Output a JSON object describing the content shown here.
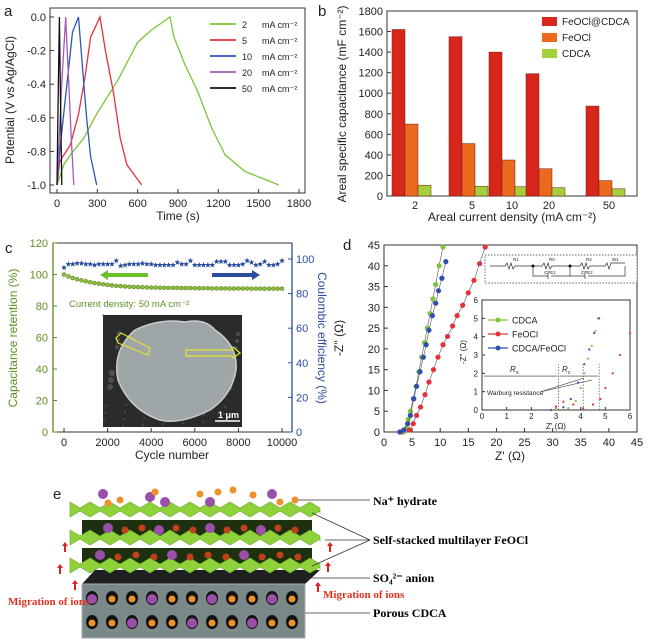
{
  "panel_labels": {
    "a": "a",
    "b": "b",
    "c": "c",
    "d": "d",
    "e": "e"
  },
  "chart_data": [
    {
      "panel": "a",
      "type": "line",
      "xlabel": "Time (s)",
      "ylabel": "Potential (V vs Ag/AgCl)",
      "xlim": [
        0,
        1800
      ],
      "ylim": [
        -1.0,
        0.0
      ],
      "xticks": [
        "0",
        "300",
        "600",
        "900",
        "1200",
        "1500",
        "1800"
      ],
      "yticks": [
        "-1.0",
        "-0.8",
        "-0.6",
        "-0.4",
        "-0.2",
        "0.0"
      ],
      "legend_position": "top-right",
      "series": [
        {
          "name": "2",
          "unit": "mA cm⁻²",
          "color": "#7cc43a",
          "points": [
            [
              0,
              -1
            ],
            [
              50,
              -0.88
            ],
            [
              100,
              -0.82
            ],
            [
              200,
              -0.72
            ],
            [
              300,
              -0.57
            ],
            [
              450,
              -0.38
            ],
            [
              600,
              -0.15
            ],
            [
              700,
              -0.08
            ],
            [
              840,
              0
            ],
            [
              870,
              -0.12
            ],
            [
              950,
              -0.28
            ],
            [
              1050,
              -0.45
            ],
            [
              1150,
              -0.66
            ],
            [
              1250,
              -0.82
            ],
            [
              1400,
              -0.92
            ],
            [
              1650,
              -1.0
            ]
          ]
        },
        {
          "name": "5",
          "unit": "mA cm⁻²",
          "color": "#e8303a",
          "points": [
            [
              0,
              -1
            ],
            [
              20,
              -0.86
            ],
            [
              100,
              -0.76
            ],
            [
              160,
              -0.58
            ],
            [
              210,
              -0.35
            ],
            [
              250,
              -0.12
            ],
            [
              320,
              0
            ],
            [
              360,
              -0.2
            ],
            [
              420,
              -0.45
            ],
            [
              470,
              -0.72
            ],
            [
              520,
              -0.88
            ],
            [
              630,
              -1.0
            ]
          ]
        },
        {
          "name": "10",
          "unit": "mA cm⁻²",
          "color": "#2f55b8",
          "points": [
            [
              0,
              -1
            ],
            [
              20,
              -0.8
            ],
            [
              60,
              -0.5
            ],
            [
              90,
              -0.28
            ],
            [
              115,
              -0.09
            ],
            [
              160,
              0
            ],
            [
              190,
              -0.3
            ],
            [
              220,
              -0.6
            ],
            [
              250,
              -0.83
            ],
            [
              295,
              -1.0
            ]
          ]
        },
        {
          "name": "20",
          "unit": "mA cm⁻²",
          "color": "#a45ab8",
          "points": [
            [
              0,
              -1
            ],
            [
              15,
              -0.75
            ],
            [
              35,
              -0.4
            ],
            [
              65,
              0
            ],
            [
              85,
              -0.35
            ],
            [
              105,
              -0.7
            ],
            [
              125,
              -1.0
            ]
          ]
        },
        {
          "name": "50",
          "unit": "mA cm⁻²",
          "color": "#111111",
          "points": [
            [
              0,
              -1
            ],
            [
              8,
              -0.5
            ],
            [
              18,
              0
            ],
            [
              26,
              -0.5
            ],
            [
              36,
              -1.0
            ]
          ]
        }
      ]
    },
    {
      "panel": "b",
      "type": "bar",
      "xlabel": "Areal current density (mA cm⁻²)",
      "ylabel": "Areal specific capacitance (mF cm⁻²)",
      "ylim": [
        0,
        1800
      ],
      "yticks": [
        "0",
        "200",
        "400",
        "600",
        "800",
        "1000",
        "1200",
        "1400",
        "1600",
        "1800"
      ],
      "categories": [
        "2",
        "5",
        "10",
        "20",
        "50"
      ],
      "legend_position": "top-right",
      "series": [
        {
          "name": "FeOCl@CDCA",
          "color": "#d8261c",
          "values": [
            1620,
            1550,
            1400,
            1190,
            875
          ]
        },
        {
          "name": "FeOCl",
          "color": "#ec6a1e",
          "values": [
            700,
            510,
            350,
            265,
            150
          ]
        },
        {
          "name": "CDCA",
          "color": "#a6cf3c",
          "values": [
            105,
            95,
            90,
            80,
            70
          ]
        }
      ]
    },
    {
      "panel": "c",
      "type": "scatter",
      "xlabel": "Cycle number",
      "ylabel": "Capacitance retention (%)",
      "ylabel_right": "Coulombic efficiency (%)",
      "xlim": [
        0,
        10000
      ],
      "ylim": [
        0,
        120
      ],
      "ylim_right": [
        0,
        100
      ],
      "xticks": [
        "0",
        "2000",
        "4000",
        "6000",
        "8000",
        "10000"
      ],
      "yticks": [
        "0",
        "20",
        "40",
        "60",
        "80",
        "100",
        "120"
      ],
      "yticks_right": [
        "0",
        "20",
        "40",
        "60",
        "80",
        "100"
      ],
      "annotation": "Current density: 50 mA cm⁻²",
      "inset_scale_bar": "1 μm",
      "left_color": "#5e8f22",
      "right_color": "#2a4da0",
      "x": [
        0,
        200,
        400,
        600,
        800,
        1000,
        1200,
        1400,
        1600,
        1800,
        2000,
        2200,
        2400,
        2600,
        2800,
        3000,
        3200,
        3400,
        3600,
        3800,
        4000,
        4200,
        4400,
        4600,
        4800,
        5000,
        5200,
        5400,
        5600,
        5800,
        6000,
        6200,
        6400,
        6600,
        6800,
        7000,
        7200,
        7400,
        7600,
        7800,
        8000,
        8200,
        8400,
        8600,
        8800,
        9000,
        9200,
        9400,
        9600,
        9800,
        10000
      ],
      "retention": [
        100,
        98.8,
        97.8,
        97,
        96.3,
        95.7,
        95.1,
        94.6,
        94.2,
        93.8,
        93.4,
        93.1,
        92.8,
        92.6,
        92.4,
        92.2,
        92.1,
        92,
        91.9,
        91.8,
        91.7,
        91.7,
        91.6,
        91.6,
        91.5,
        91.5,
        91.5,
        91.4,
        91.4,
        91.4,
        91.3,
        91.3,
        91.3,
        91.3,
        91.2,
        91.2,
        91.2,
        91.2,
        91.1,
        91.1,
        91.1,
        91.1,
        91.1,
        91,
        91,
        91,
        91,
        91,
        91,
        91,
        91
      ],
      "efficiency": [
        95,
        97,
        97,
        97.5,
        97.5,
        97,
        97,
        96.5,
        97,
        97,
        97,
        97,
        99,
        96,
        96.5,
        97,
        97,
        97,
        97.5,
        97,
        97,
        96.5,
        96.5,
        96.5,
        96.5,
        96.5,
        98,
        97,
        97,
        99,
        96.5,
        96.5,
        96.5,
        96.5,
        96.5,
        98.5,
        98.5,
        98.5,
        96.5,
        96.5,
        96.5,
        97,
        99,
        98,
        96.5,
        97,
        98.5,
        96.5,
        96.5,
        97,
        99
      ]
    },
    {
      "panel": "d",
      "type": "scatter",
      "xlabel": "Z' (Ω)",
      "ylabel": "-Z'' (Ω)",
      "xlim": [
        0,
        45
      ],
      "ylim": [
        0,
        45
      ],
      "xticks": [
        "0",
        "5",
        "10",
        "15",
        "20",
        "25",
        "30",
        "35",
        "40",
        "45"
      ],
      "yticks": [
        "0",
        "5",
        "10",
        "15",
        "20",
        "25",
        "30",
        "35",
        "40",
        "45"
      ],
      "circuit_labels": [
        "R1",
        "R0",
        "CPE1",
        "R2",
        "CPE2",
        "W1"
      ],
      "series": [
        {
          "name": "CDCA",
          "color": "#7cc43a",
          "points": [
            [
              3.5,
              0
            ],
            [
              4,
              1
            ],
            [
              4.3,
              3
            ],
            [
              4.7,
              5
            ],
            [
              5.2,
              8
            ],
            [
              5.7,
              11
            ],
            [
              6.2,
              14.5
            ],
            [
              6.7,
              18
            ],
            [
              7.2,
              21.5
            ],
            [
              7.7,
              25
            ],
            [
              8.2,
              28.5
            ],
            [
              8.7,
              32
            ],
            [
              9.2,
              35.5
            ],
            [
              9.8,
              40
            ],
            [
              10.5,
              44.5
            ]
          ]
        },
        {
          "name": "FeOCl",
          "color": "#e8303a",
          "points": [
            [
              3,
              0
            ],
            [
              4.5,
              0.5
            ],
            [
              5.2,
              2
            ],
            [
              5.8,
              4
            ],
            [
              6.5,
              6
            ],
            [
              7.3,
              9
            ],
            [
              8,
              12
            ],
            [
              8.8,
              15
            ],
            [
              9.6,
              18
            ],
            [
              10.5,
              21
            ],
            [
              11.3,
              23
            ],
            [
              12.2,
              25.5
            ],
            [
              13,
              28
            ],
            [
              14,
              30.5
            ],
            [
              15,
              33.5
            ],
            [
              16,
              36.5
            ],
            [
              17,
              40.5
            ],
            [
              18,
              44.5
            ]
          ]
        },
        {
          "name": "CDCA/FeOCl",
          "color": "#2f4fb0",
          "points": [
            [
              2.8,
              0
            ],
            [
              3.5,
              0.5
            ],
            [
              4.2,
              2
            ],
            [
              4.7,
              4
            ],
            [
              5.3,
              8
            ],
            [
              5.8,
              11
            ],
            [
              6.4,
              14.5
            ],
            [
              7,
              18
            ],
            [
              7.5,
              21
            ],
            [
              8,
              24.5
            ],
            [
              8.6,
              28
            ],
            [
              9.2,
              31
            ],
            [
              9.7,
              34
            ],
            [
              10.3,
              37
            ],
            [
              11,
              41
            ]
          ]
        }
      ],
      "inset": {
        "xlabel": "Z' (Ω)",
        "ylabel": "-Z'' (Ω)",
        "xlim": [
          0,
          6
        ],
        "ylim": [
          0,
          6
        ],
        "xticks": [
          "0",
          "1",
          "2",
          "3",
          "4",
          "5",
          "6"
        ],
        "yticks": [
          "0",
          "1",
          "2",
          "3",
          "4",
          "5",
          "6"
        ],
        "legend_position": "top-left",
        "annotation_warburg": "Warburg resistance",
        "rs_label": "R",
        "rs_sub": "s",
        "rc_label": "R",
        "rc_sub": "c",
        "series": [
          {
            "name": "CDCA",
            "color": "#7cc43a",
            "points": [
              [
                3,
                0
              ],
              [
                3.5,
                0.1
              ],
              [
                3.8,
                0.5
              ],
              [
                4.0,
                1.2
              ],
              [
                4.15,
                2
              ],
              [
                4.3,
                2.8
              ],
              [
                4.45,
                3.5
              ],
              [
                4.6,
                4.3
              ],
              [
                4.7,
                5
              ]
            ]
          },
          {
            "name": "FeOCl",
            "color": "#e8303a",
            "points": [
              [
                3,
                0.2
              ],
              [
                3.3,
                0.45
              ],
              [
                3.7,
                0.3
              ],
              [
                4.1,
                0.1
              ],
              [
                4.5,
                0.3
              ],
              [
                4.8,
                0.6
              ],
              [
                5.0,
                1.2
              ],
              [
                5.3,
                2.0
              ],
              [
                5.6,
                3.0
              ],
              [
                6,
                4.2
              ]
            ]
          },
          {
            "name": "CDCA/FeOCl",
            "color": "#2f4fb0",
            "points": [
              [
                2.8,
                0
              ],
              [
                3.3,
                0.15
              ],
              [
                3.6,
                0.6
              ],
              [
                3.9,
                1.5
              ],
              [
                4.15,
                2.5
              ],
              [
                4.35,
                3.3
              ],
              [
                4.55,
                4.2
              ],
              [
                4.75,
                5
              ]
            ]
          }
        ]
      }
    }
  ],
  "illustration": {
    "label_na": "Na⁺ hydrate",
    "label_feocl": "Self-stacked multilayer FeOCl",
    "label_so4": "SO₄²⁻ anion",
    "label_cdca": "Porous CDCA",
    "label_migration_left": "Migration of ions",
    "label_migration_right": "Migration of ions",
    "colors": {
      "sheet": "#8fd13a",
      "na": "#f0902a",
      "so4": "#9a4fa8",
      "block": "#7b8888"
    }
  }
}
